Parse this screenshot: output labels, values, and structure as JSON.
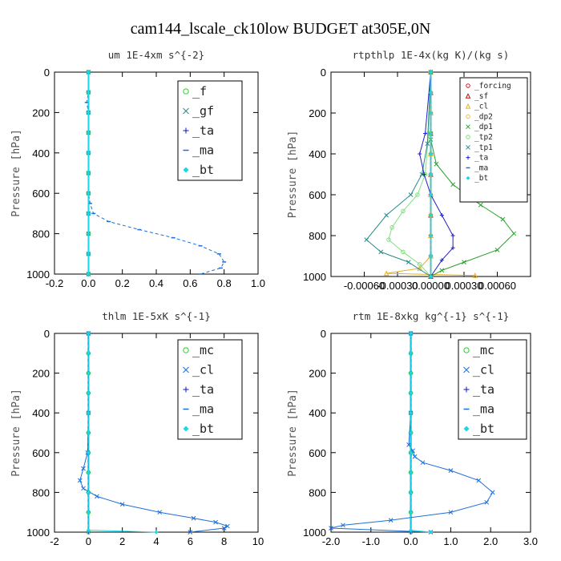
{
  "figure_title": "cam144_lscale_ck10low  BUDGET at305E,0N",
  "chart_data": [
    {
      "type": "line",
      "title": "um  1E-4xm s^{-2}",
      "ylabel": "Pressure [hPa]",
      "xlim": [
        -0.2,
        1.0
      ],
      "ylim": [
        1000,
        0
      ],
      "xticks": [
        "-0.2",
        "0.0",
        "0.2",
        "0.4",
        "0.6",
        "0.8",
        "1.0"
      ],
      "yticks": [
        "0",
        "200",
        "400",
        "600",
        "800",
        "1000"
      ],
      "legend_font": 15,
      "series": [
        {
          "name": "_f",
          "color": "#2bd12b",
          "marker": "circle",
          "x": [
            0,
            0,
            0,
            0,
            0,
            0,
            0,
            0,
            0,
            0,
            0
          ],
          "y": [
            0,
            100,
            200,
            300,
            400,
            500,
            600,
            700,
            800,
            900,
            1000
          ]
        },
        {
          "name": "_gf",
          "color": "#2a8a8a",
          "marker": "x",
          "x": [
            0,
            0,
            0,
            0,
            0,
            0,
            0,
            0,
            0,
            0,
            0
          ],
          "y": [
            0,
            100,
            200,
            300,
            400,
            500,
            600,
            700,
            800,
            900,
            1000
          ]
        },
        {
          "name": "_ta",
          "color": "#1010cc",
          "marker": "plus",
          "x": [
            0,
            0,
            0,
            0,
            0,
            0,
            0,
            0,
            0,
            0,
            0
          ],
          "y": [
            0,
            100,
            200,
            300,
            400,
            500,
            600,
            700,
            800,
            900,
            1000
          ]
        },
        {
          "name": "_ma",
          "color": "#1e6fd8",
          "marker": "dash",
          "x": [
            0,
            0,
            -0.01,
            0,
            0,
            0,
            0.01,
            0.03,
            0.12,
            0.3,
            0.5,
            0.66,
            0.77,
            0.8,
            0.78,
            0.66
          ],
          "y": [
            0,
            100,
            150,
            200,
            400,
            600,
            650,
            700,
            740,
            780,
            820,
            860,
            900,
            940,
            970,
            1000
          ]
        },
        {
          "name": "_bt",
          "color": "#18d8e8",
          "marker": "diamond",
          "x": [
            0,
            0,
            0,
            0,
            0,
            0,
            0,
            0,
            0,
            0,
            0
          ],
          "y": [
            0,
            100,
            200,
            300,
            400,
            500,
            600,
            700,
            800,
            900,
            1000
          ]
        }
      ]
    },
    {
      "type": "line",
      "title": "rtpthlp  1E-4x(kg K)/(kg s)",
      "ylabel": "Pressure [hPa]",
      "xlim": [
        -0.0009,
        0.0009
      ],
      "ylim": [
        1000,
        0
      ],
      "xticks": [
        "-0.00060",
        "-0.00030",
        "0.00000",
        "0.00030",
        "0.00060"
      ],
      "yticks": [
        "0",
        "200",
        "400",
        "600",
        "800",
        "1000"
      ],
      "legend_font": 9.5,
      "series": [
        {
          "name": "_forcing",
          "color": "#d21b1b",
          "marker": "circle",
          "x": [
            0,
            0,
            0,
            0,
            0,
            0,
            0,
            0,
            0,
            0,
            0
          ],
          "y": [
            0,
            100,
            200,
            300,
            400,
            500,
            600,
            700,
            800,
            900,
            1000
          ]
        },
        {
          "name": "_sf",
          "color": "#c01010",
          "marker": "triangle",
          "x": [
            0,
            0,
            0,
            0,
            0,
            0,
            0,
            0,
            0,
            0,
            0
          ],
          "y": [
            0,
            100,
            200,
            300,
            400,
            500,
            600,
            700,
            800,
            900,
            1000
          ]
        },
        {
          "name": "_cl",
          "color": "#e8b020",
          "marker": "triangle",
          "x": [
            0,
            0,
            0,
            0,
            0,
            0,
            -0.0001,
            -0.0004,
            0.0004
          ],
          "y": [
            0,
            200,
            400,
            600,
            800,
            900,
            960,
            985,
            995
          ]
        },
        {
          "name": "_dp2",
          "color": "#f0c030",
          "marker": "circle",
          "x": [
            0,
            0,
            0,
            0,
            0,
            0,
            0,
            0,
            0,
            0,
            0
          ],
          "y": [
            0,
            100,
            200,
            300,
            400,
            500,
            600,
            700,
            800,
            900,
            1000
          ]
        },
        {
          "name": "_dp1",
          "color": "#2ca02c",
          "marker": "x",
          "x": [
            0,
            0,
            0,
            5e-05,
            0.0002,
            0.00045,
            0.00065,
            0.00075,
            0.0006,
            0.0003,
            0.0001,
            0
          ],
          "y": [
            0,
            300,
            330,
            450,
            550,
            650,
            720,
            790,
            870,
            930,
            970,
            1000
          ]
        },
        {
          "name": "_tp2",
          "color": "#7ee07e",
          "marker": "circle",
          "x": [
            0,
            -2e-05,
            -5e-05,
            -0.00012,
            -0.00025,
            -0.00035,
            -0.00038,
            -0.00025,
            -0.0001,
            0
          ],
          "y": [
            0,
            300,
            500,
            600,
            680,
            760,
            820,
            880,
            940,
            1000
          ]
        },
        {
          "name": "_tp1",
          "color": "#2a8a8a",
          "marker": "x",
          "x": [
            0,
            -3e-05,
            -8e-05,
            -0.00018,
            -0.0004,
            -0.00058,
            -0.00045,
            -0.0002,
            0
          ],
          "y": [
            0,
            350,
            500,
            600,
            700,
            820,
            880,
            930,
            1000
          ]
        },
        {
          "name": "_ta",
          "color": "#2020cc",
          "marker": "plus",
          "x": [
            0,
            -5e-05,
            -0.0001,
            -6e-05,
            0,
            0.0001,
            0.0002,
            0.0002,
            0.0001,
            0
          ],
          "y": [
            0,
            300,
            400,
            500,
            600,
            700,
            800,
            860,
            920,
            1000
          ]
        },
        {
          "name": "_ma",
          "color": "#1e6fd8",
          "marker": "dash",
          "x": [
            0,
            0,
            0,
            0,
            0,
            0,
            0,
            0,
            0,
            0,
            0
          ],
          "y": [
            0,
            100,
            200,
            300,
            400,
            500,
            600,
            700,
            800,
            900,
            1000
          ]
        },
        {
          "name": "_bt",
          "color": "#18d8e8",
          "marker": "diamond",
          "x": [
            0,
            0,
            0,
            0,
            0,
            0,
            0,
            0,
            0,
            0,
            0
          ],
          "y": [
            0,
            100,
            200,
            300,
            400,
            500,
            600,
            700,
            800,
            900,
            1000
          ]
        }
      ]
    },
    {
      "type": "line",
      "title": "thlm  1E-5xK s^{-1}",
      "ylabel": "Pressure [hPa]",
      "xlim": [
        -2,
        10
      ],
      "ylim": [
        1000,
        0
      ],
      "xticks": [
        "-2",
        "0",
        "2",
        "4",
        "6",
        "8",
        "10"
      ],
      "yticks": [
        "0",
        "200",
        "400",
        "600",
        "800",
        "1000"
      ],
      "legend_font": 15,
      "series": [
        {
          "name": "_mc",
          "color": "#2bd12b",
          "marker": "circle",
          "x": [
            0,
            0,
            0,
            0,
            0,
            0,
            0,
            0,
            0,
            0,
            0
          ],
          "y": [
            0,
            100,
            200,
            300,
            400,
            500,
            600,
            700,
            800,
            900,
            1000
          ]
        },
        {
          "name": "_cl",
          "color": "#1e6fd8",
          "marker": "x",
          "x": [
            0,
            0,
            -0.05,
            -0.3,
            -0.5,
            -0.3,
            0.5,
            2,
            4.2,
            6.2,
            7.5,
            8.2,
            8,
            6
          ],
          "y": [
            0,
            400,
            600,
            680,
            740,
            780,
            820,
            860,
            900,
            930,
            950,
            970,
            980,
            1000
          ]
        },
        {
          "name": "_ta",
          "color": "#1010cc",
          "marker": "plus",
          "x": [
            0,
            0,
            0,
            0,
            0,
            0,
            0,
            0,
            0,
            0,
            0
          ],
          "y": [
            0,
            100,
            200,
            300,
            400,
            500,
            600,
            700,
            800,
            900,
            1000
          ]
        },
        {
          "name": "_ma",
          "color": "#1e6fd8",
          "marker": "dash",
          "x": [
            0,
            0,
            0,
            0,
            0,
            0,
            0,
            0,
            0,
            0,
            0
          ],
          "y": [
            0,
            100,
            200,
            300,
            400,
            500,
            600,
            700,
            800,
            900,
            1000
          ]
        },
        {
          "name": "_bt",
          "color": "#18d8e8",
          "marker": "diamond",
          "x": [
            0,
            0,
            0,
            0,
            0,
            0,
            0,
            0,
            0,
            0,
            0,
            4
          ],
          "y": [
            0,
            100,
            200,
            300,
            400,
            500,
            600,
            700,
            800,
            900,
            990,
            1000
          ]
        }
      ]
    },
    {
      "type": "line",
      "title": "rtm  1E-8xkg kg^{-1} s^{-1}",
      "ylabel": "Pressure [hPa]",
      "xlim": [
        -2.0,
        3.0
      ],
      "ylim": [
        1000,
        0
      ],
      "xticks": [
        "-2.0",
        "-1.0",
        "0.0",
        "1.0",
        "2.0",
        "3.0"
      ],
      "yticks": [
        "0",
        "200",
        "400",
        "600",
        "800",
        "1000"
      ],
      "legend_font": 15,
      "series": [
        {
          "name": "_mc",
          "color": "#2bd12b",
          "marker": "circle",
          "x": [
            0,
            0,
            0,
            0,
            0,
            0,
            0,
            0,
            0,
            0,
            0
          ],
          "y": [
            0,
            100,
            200,
            300,
            400,
            500,
            600,
            700,
            800,
            900,
            1000
          ]
        },
        {
          "name": "_cl",
          "color": "#1e6fd8",
          "marker": "x",
          "x": [
            0,
            0,
            -0.05,
            0.05,
            0.1,
            0.3,
            1,
            1.7,
            2.05,
            1.9,
            1,
            -0.5,
            -1.7,
            -2,
            0.5
          ],
          "y": [
            0,
            400,
            560,
            590,
            620,
            650,
            690,
            740,
            800,
            850,
            900,
            940,
            965,
            980,
            1000
          ]
        },
        {
          "name": "_ta",
          "color": "#1010cc",
          "marker": "plus",
          "x": [
            0,
            0,
            0,
            0,
            0,
            0,
            0,
            0,
            0,
            0,
            0
          ],
          "y": [
            0,
            100,
            200,
            300,
            400,
            500,
            600,
            700,
            800,
            900,
            1000
          ]
        },
        {
          "name": "_ma",
          "color": "#1e6fd8",
          "marker": "dash",
          "x": [
            0,
            0,
            0,
            0,
            0,
            0,
            0,
            0,
            0,
            0,
            0
          ],
          "y": [
            0,
            100,
            200,
            300,
            400,
            500,
            600,
            700,
            800,
            900,
            1000
          ]
        },
        {
          "name": "_bt",
          "color": "#18d8e8",
          "marker": "diamond",
          "x": [
            0,
            0,
            0,
            0,
            0,
            0,
            0,
            0,
            0,
            0,
            0,
            0.5
          ],
          "y": [
            0,
            100,
            200,
            300,
            400,
            500,
            600,
            700,
            800,
            900,
            990,
            1000
          ]
        }
      ]
    }
  ]
}
